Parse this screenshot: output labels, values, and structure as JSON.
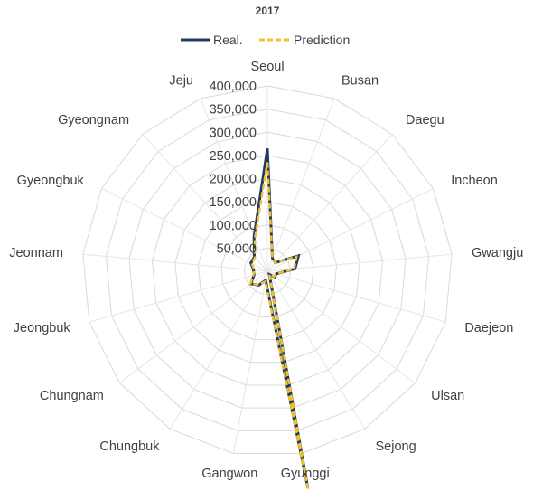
{
  "chart_data": {
    "type": "radar",
    "title": "2017",
    "categories": [
      "Seoul",
      "Busan",
      "Daegu",
      "Incheon",
      "Gwangju",
      "Daejeon",
      "Ulsan",
      "Sejong",
      "Gyunggi",
      "Gangwon",
      "Chungbuk",
      "Chungnam",
      "Jeongbuk",
      "Jeonnam",
      "Gyeongbuk",
      "Gyeongnam",
      "Jeju"
    ],
    "rlim": [
      0,
      400000
    ],
    "ticks": [
      50000,
      100000,
      150000,
      200000,
      250000,
      300000,
      350000,
      400000
    ],
    "tick_labels": [
      "50,000",
      "100,000",
      "150,000",
      "200,000",
      "250,000",
      "300,000",
      "350,000",
      "400,000"
    ],
    "grid": true,
    "legend_position": "top",
    "series": [
      {
        "name": "Real.",
        "color": "#1f3b63",
        "dash": "solid",
        "values": [
          265000,
          30000,
          25000,
          75000,
          60000,
          20000,
          20000,
          8000,
          475000,
          20000,
          35000,
          45000,
          30000,
          30000,
          40000,
          42000,
          80000
        ]
      },
      {
        "name": "Prediction",
        "color": "#f2c12e",
        "dash": "dashed",
        "values": [
          235000,
          30000,
          25000,
          70000,
          58000,
          20000,
          18000,
          8000,
          480000,
          22000,
          34000,
          46000,
          32000,
          28000,
          38000,
          40000,
          75000
        ]
      }
    ]
  }
}
